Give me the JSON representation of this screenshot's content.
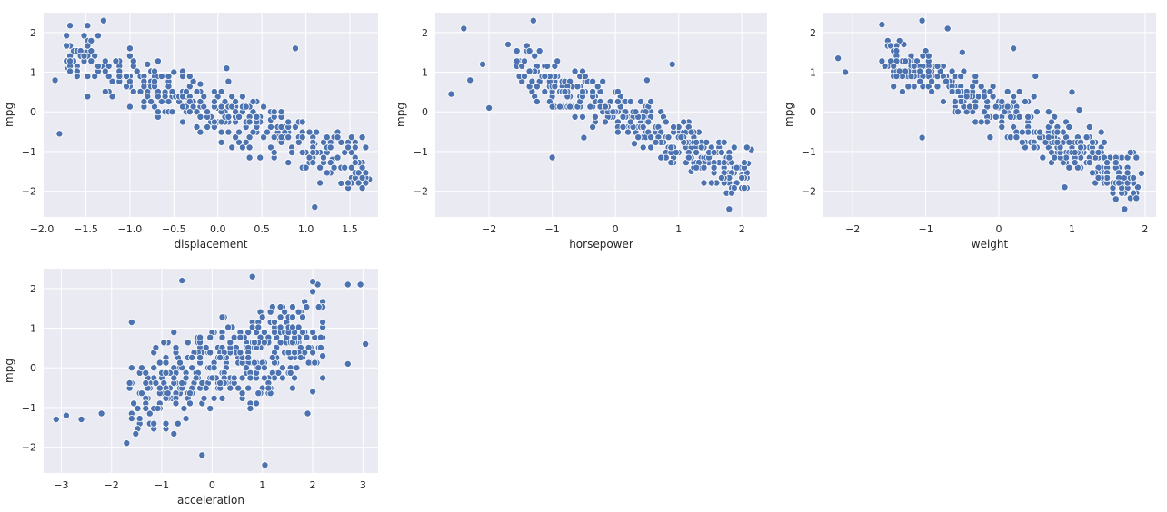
{
  "figure": {
    "ylabel": "mpg",
    "colors": {
      "background": "#eaeaf2",
      "grid": "#ffffff",
      "point": "#4c72b0",
      "point_edge": "#ffffff",
      "text": "#262626"
    }
  },
  "chart_data": [
    {
      "type": "scatter",
      "xlabel": "displacement",
      "ylabel": "mpg",
      "xlim": [
        -1.98,
        1.82
      ],
      "ylim": [
        -2.65,
        2.5
      ],
      "xticks": [
        -2.0,
        -1.5,
        -1.0,
        -0.5,
        0.0,
        0.5,
        1.0,
        1.5
      ],
      "xtick_labels": [
        "−2.0",
        "−1.5",
        "−1.0",
        "−0.5",
        "0.0",
        "0.5",
        "1.0",
        "1.5"
      ],
      "yticks": [
        -2,
        -1,
        0,
        1,
        2
      ],
      "ytick_labels": [
        "−2",
        "−1",
        "0",
        "1",
        "2"
      ],
      "anchors": [
        [
          -1.85,
          0.8
        ],
        [
          -1.8,
          -0.55
        ],
        [
          -1.7,
          1.1
        ],
        [
          -1.5,
          1.5
        ],
        [
          -1.3,
          2.3
        ],
        [
          -1.1,
          0.9
        ],
        [
          -1.0,
          1.6
        ],
        [
          -0.8,
          1.2
        ],
        [
          -0.6,
          0.5
        ],
        [
          -0.5,
          1.0
        ],
        [
          -0.3,
          0.3
        ],
        [
          -0.2,
          0.7
        ],
        [
          0.0,
          0.1
        ],
        [
          0.1,
          1.1
        ],
        [
          0.4,
          0.0
        ],
        [
          0.6,
          -0.2
        ],
        [
          0.7,
          -0.7
        ],
        [
          0.88,
          1.6
        ],
        [
          0.8,
          -0.6
        ],
        [
          1.1,
          -0.8
        ],
        [
          1.1,
          -2.4
        ],
        [
          1.3,
          -1.2
        ],
        [
          1.4,
          -1.8
        ],
        [
          1.6,
          -1.3
        ],
        [
          1.72,
          -1.7
        ]
      ],
      "trend": {
        "x_range": [
          -1.8,
          1.7
        ],
        "intercept": 0.0,
        "slope": -0.85,
        "noise": 0.5
      },
      "n_points": 392,
      "seed": 11
    },
    {
      "type": "scatter",
      "xlabel": "horsepower",
      "ylabel": "mpg",
      "xlim": [
        -2.85,
        2.4
      ],
      "ylim": [
        -2.65,
        2.5
      ],
      "xticks": [
        -2,
        -1,
        0,
        1,
        2
      ],
      "xtick_labels": [
        "−2",
        "−1",
        "0",
        "1",
        "2"
      ],
      "yticks": [
        -2,
        -1,
        0,
        1,
        2
      ],
      "ytick_labels": [
        "−2",
        "−1",
        "0",
        "1",
        "2"
      ],
      "anchors": [
        [
          -2.6,
          0.45
        ],
        [
          -2.4,
          2.1
        ],
        [
          -2.3,
          0.8
        ],
        [
          -2.1,
          1.2
        ],
        [
          -2.0,
          0.1
        ],
        [
          -1.7,
          1.7
        ],
        [
          -1.3,
          2.3
        ],
        [
          -1.0,
          -1.15
        ],
        [
          -0.5,
          -0.65
        ],
        [
          0.0,
          0.5
        ],
        [
          0.5,
          0.8
        ],
        [
          0.9,
          1.2
        ],
        [
          1.0,
          -0.5
        ],
        [
          1.5,
          -1.1
        ],
        [
          1.8,
          -2.45
        ],
        [
          2.0,
          -1.6
        ],
        [
          2.1,
          -1.3
        ],
        [
          2.15,
          -0.95
        ],
        [
          1.2,
          -1.5
        ],
        [
          0.3,
          -0.8
        ]
      ],
      "trend": {
        "x_range": [
          -1.6,
          2.1
        ],
        "intercept": 0.0,
        "slope": -0.78,
        "noise": 0.45
      },
      "n_points": 392,
      "seed": 23
    },
    {
      "type": "scatter",
      "xlabel": "weight",
      "ylabel": "mpg",
      "xlim": [
        -2.4,
        2.15
      ],
      "ylim": [
        -2.65,
        2.5
      ],
      "xticks": [
        -2,
        -1,
        0,
        1,
        2
      ],
      "xtick_labels": [
        "−2",
        "−1",
        "0",
        "1",
        "2"
      ],
      "yticks": [
        -2,
        -1,
        0,
        1,
        2
      ],
      "ytick_labels": [
        "−2",
        "−1",
        "0",
        "1",
        "2"
      ],
      "anchors": [
        [
          -2.2,
          1.35
        ],
        [
          -2.1,
          1.0
        ],
        [
          -1.6,
          2.2
        ],
        [
          -1.3,
          1.7
        ],
        [
          -1.05,
          2.3
        ],
        [
          -1.05,
          -0.65
        ],
        [
          -0.7,
          2.1
        ],
        [
          -0.5,
          1.5
        ],
        [
          0.0,
          0.1
        ],
        [
          0.2,
          1.6
        ],
        [
          0.5,
          0.9
        ],
        [
          0.8,
          -0.7
        ],
        [
          0.9,
          -1.9
        ],
        [
          1.0,
          0.5
        ],
        [
          1.1,
          0.05
        ],
        [
          1.4,
          -1.5
        ],
        [
          1.6,
          -2.2
        ],
        [
          1.72,
          -2.45
        ],
        [
          1.9,
          -1.9
        ],
        [
          1.95,
          -1.55
        ]
      ],
      "trend": {
        "x_range": [
          -1.6,
          1.9
        ],
        "intercept": 0.0,
        "slope": -0.9,
        "noise": 0.45
      },
      "n_points": 392,
      "seed": 37
    },
    {
      "type": "scatter",
      "xlabel": "acceleration",
      "ylabel": "mpg",
      "xlim": [
        -3.35,
        3.3
      ],
      "ylim": [
        -2.65,
        2.5
      ],
      "xticks": [
        -3,
        -2,
        -1,
        0,
        1,
        2,
        3
      ],
      "xtick_labels": [
        "−3",
        "−2",
        "−1",
        "0",
        "1",
        "2",
        "3"
      ],
      "yticks": [
        -2,
        -1,
        0,
        1,
        2
      ],
      "ytick_labels": [
        "−2",
        "−1",
        "0",
        "1",
        "2"
      ],
      "anchors": [
        [
          -3.1,
          -1.3
        ],
        [
          -2.9,
          -1.2
        ],
        [
          -2.6,
          -1.3
        ],
        [
          -2.2,
          -1.15
        ],
        [
          -1.7,
          -1.9
        ],
        [
          -1.6,
          1.15
        ],
        [
          -0.6,
          2.2
        ],
        [
          -0.2,
          -2.2
        ],
        [
          0.8,
          2.3
        ],
        [
          1.05,
          -2.45
        ],
        [
          1.9,
          -1.15
        ],
        [
          2.1,
          2.1
        ],
        [
          2.2,
          0.3
        ],
        [
          2.7,
          0.1
        ],
        [
          2.7,
          2.1
        ],
        [
          2.95,
          2.1
        ],
        [
          3.05,
          0.6
        ],
        [
          2.0,
          -0.6
        ]
      ],
      "trend": {
        "x_range": [
          -1.7,
          2.2
        ],
        "intercept": 0.0,
        "slope": 0.42,
        "noise": 0.85
      },
      "n_points": 392,
      "seed": 53
    }
  ]
}
